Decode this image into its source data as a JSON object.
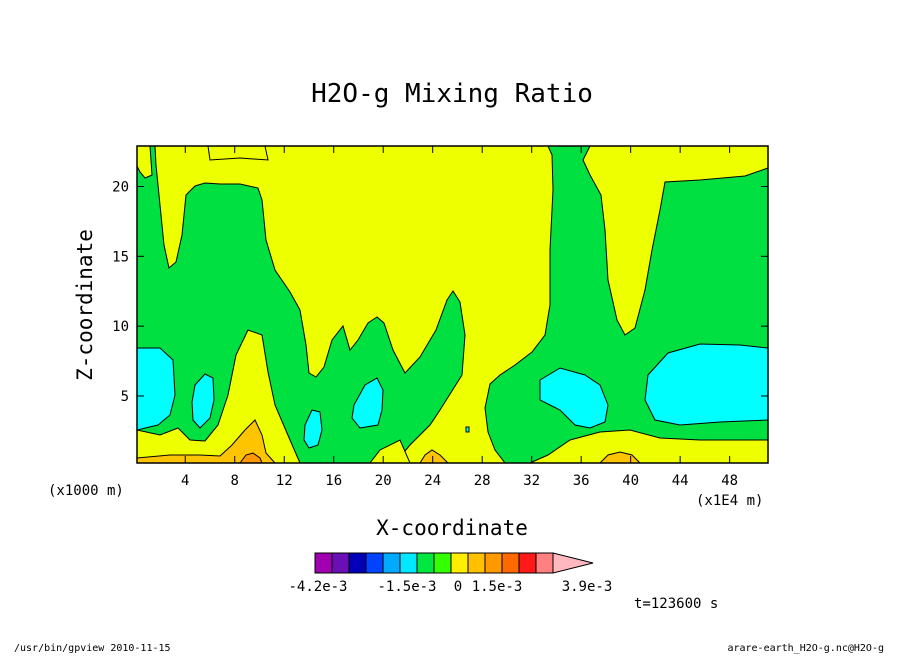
{
  "chart_data": {
    "type": "contour",
    "title": "H2O-g Mixing Ratio",
    "xlabel": "X-coordinate",
    "ylabel": "Z-coordinate",
    "x_unit_left": "(x1000 m)",
    "x_unit_right": "(x1E4 m)",
    "x_ticks": [
      4,
      8,
      12,
      16,
      20,
      24,
      28,
      32,
      36,
      40,
      44,
      48
    ],
    "y_ticks": [
      5,
      10,
      15,
      20
    ],
    "xlim": [
      0.1,
      51.1
    ],
    "ylim": [
      0.2,
      22.9
    ],
    "regions": [
      {
        "level": "cyan",
        "x": 3.6,
        "y": 5.3
      },
      {
        "level": "cyan",
        "x": 5.4,
        "y": 4.7
      },
      {
        "level": "cyan",
        "x": 14.2,
        "y": 2.3
      },
      {
        "level": "cyan",
        "x": 19.0,
        "y": 3.8
      },
      {
        "level": "cyan",
        "x": 36.5,
        "y": 5.0
      },
      {
        "level": "cyan",
        "x": 46.6,
        "y": 5.6
      },
      {
        "level": "yellow",
        "x": 24.0,
        "y": 18.0
      },
      {
        "level": "orange",
        "x": 9.6,
        "y": 1.0
      }
    ],
    "colorbar": {
      "colors": [
        "#a000b0",
        "#6a0fb5",
        "#0000b8",
        "#0044ff",
        "#00aaff",
        "#00e8ff",
        "#00e840",
        "#33ff00",
        "#ffee00",
        "#ffc000",
        "#ff9900",
        "#ff6a00",
        "#ff1a1a",
        "#ff8080",
        "#ffb8c0"
      ],
      "labels": [
        "-4.2e-3",
        "-1.5e-3",
        "0",
        "1.5e-3",
        "3.9e-3"
      ]
    },
    "colors": {
      "green": "#00e040",
      "yellow": "#eeff00",
      "cyan": "#00ffff",
      "orange": "#ffc400",
      "deep_orange": "#ff9800"
    }
  },
  "time_label": "t=123600 s",
  "footer": {
    "left": "/usr/bin/gpview   2010-11-15",
    "right": "arare-earth_H2O-g.nc@H2O-g"
  }
}
